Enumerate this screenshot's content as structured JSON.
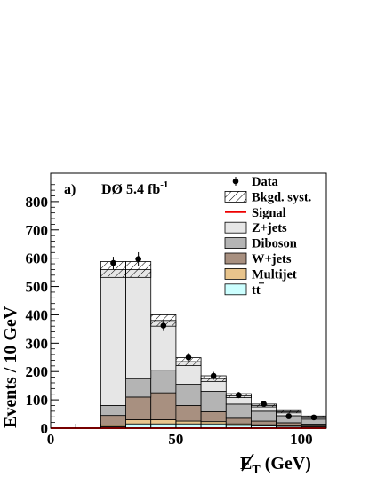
{
  "chart_data": {
    "type": "bar",
    "stacked": true,
    "panel_label": "a)",
    "experiment_label": "DØ 5.4 fb",
    "experiment_label_sup": "-1",
    "xlabel": "E",
    "xlabel_sub": "T",
    "xlabel_unit": "(GeV)",
    "ylabel": "Events / 10 GeV",
    "xlim": [
      0,
      110
    ],
    "ylim": [
      0,
      900
    ],
    "x_ticks": [
      0,
      50,
      100
    ],
    "y_ticks": [
      0,
      100,
      200,
      300,
      400,
      500,
      600,
      700,
      800
    ],
    "bin_edges": [
      20,
      30,
      40,
      50,
      60,
      70,
      80,
      90,
      100,
      110
    ],
    "series": [
      {
        "name": "tt",
        "color": "#ccffff",
        "values": [
          5,
          15,
          15,
          15,
          15,
          10,
          8,
          6,
          5
        ]
      },
      {
        "name": "Multijet",
        "color": "#e8c48c",
        "values": [
          5,
          15,
          15,
          10,
          8,
          5,
          4,
          3,
          2
        ]
      },
      {
        "name": "W+jets",
        "color": "#a89080",
        "values": [
          35,
          80,
          95,
          55,
          35,
          20,
          13,
          10,
          7
        ]
      },
      {
        "name": "Diboson",
        "color": "#b4b4b4",
        "values": [
          35,
          65,
          80,
          75,
          72,
          50,
          35,
          25,
          18
        ]
      },
      {
        "name": "Z+jets",
        "color": "#e6e6e6",
        "values": [
          480,
          385,
          175,
          80,
          45,
          30,
          20,
          14,
          8
        ]
      }
    ],
    "bkg_total": [
      560,
      560,
      380,
      235,
      175,
      115,
      80,
      58,
      40
    ],
    "bkg_syst": [
      28,
      28,
      20,
      14,
      10,
      7,
      5,
      4,
      3
    ],
    "signal": {
      "name": "Signal",
      "color": "#ee0000",
      "values": [
        0,
        0,
        0,
        0,
        0,
        0,
        0,
        0,
        0
      ]
    },
    "data": {
      "name": "Data",
      "x": [
        25,
        35,
        45,
        55,
        65,
        75,
        85,
        95,
        105
      ],
      "y": [
        583,
        597,
        362,
        250,
        185,
        117,
        86,
        42,
        38
      ],
      "err": [
        22,
        24,
        19,
        16,
        14,
        11,
        9,
        6,
        6
      ]
    },
    "legend": {
      "position": "top-right",
      "entries": [
        {
          "label": "Data",
          "kind": "marker"
        },
        {
          "label": "Bkgd. syst.",
          "kind": "hatch"
        },
        {
          "label": "Signal",
          "kind": "line",
          "color": "#ee0000"
        },
        {
          "label": "Z+jets",
          "kind": "box",
          "color": "#e6e6e6"
        },
        {
          "label": "Diboson",
          "kind": "box",
          "color": "#b4b4b4"
        },
        {
          "label": "W+jets",
          "kind": "box",
          "color": "#a89080"
        },
        {
          "label": "Multijet",
          "kind": "box",
          "color": "#e8c48c"
        },
        {
          "label": "tt",
          "kind": "box",
          "color": "#ccffff"
        }
      ]
    }
  }
}
